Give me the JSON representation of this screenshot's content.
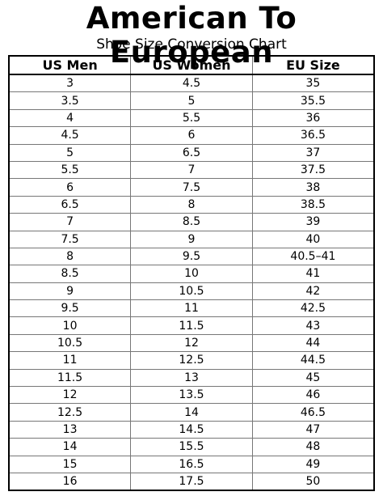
{
  "header": {
    "title": "American To European",
    "subtitle": "Shoe Size Conversion Chart"
  },
  "table": {
    "columns": [
      "US Men",
      "US Women",
      "EU Size"
    ],
    "rows": [
      [
        "3",
        "4.5",
        "35"
      ],
      [
        "3.5",
        "5",
        "35.5"
      ],
      [
        "4",
        "5.5",
        "36"
      ],
      [
        "4.5",
        "6",
        "36.5"
      ],
      [
        "5",
        "6.5",
        "37"
      ],
      [
        "5.5",
        "7",
        "37.5"
      ],
      [
        "6",
        "7.5",
        "38"
      ],
      [
        "6.5",
        "8",
        "38.5"
      ],
      [
        "7",
        "8.5",
        "39"
      ],
      [
        "7.5",
        "9",
        "40"
      ],
      [
        "8",
        "9.5",
        "40.5–41"
      ],
      [
        "8.5",
        "10",
        "41"
      ],
      [
        "9",
        "10.5",
        "42"
      ],
      [
        "9.5",
        "11",
        "42.5"
      ],
      [
        "10",
        "11.5",
        "43"
      ],
      [
        "10.5",
        "12",
        "44"
      ],
      [
        "11",
        "12.5",
        "44.5"
      ],
      [
        "11.5",
        "13",
        "45"
      ],
      [
        "12",
        "13.5",
        "46"
      ],
      [
        "12.5",
        "14",
        "46.5"
      ],
      [
        "13",
        "14.5",
        "47"
      ],
      [
        "14",
        "15.5",
        "48"
      ],
      [
        "15",
        "16.5",
        "49"
      ],
      [
        "16",
        "17.5",
        "50"
      ]
    ]
  }
}
